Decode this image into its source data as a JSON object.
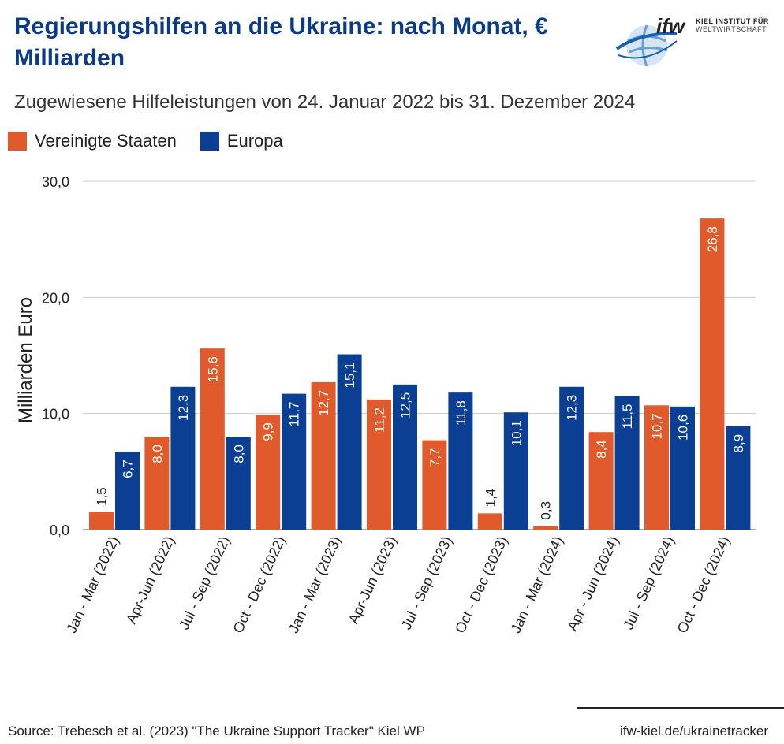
{
  "header": {
    "title": "Regierungshilfen an die Ukraine: nach Monat, € Milliarden",
    "subtitle": "Zugewiesene Hilfeleistungen von 24. Januar 2022 bis 31. Dezember 2024"
  },
  "logo": {
    "wordmark": "ifw",
    "line1": "KIEL INSTITUT FÜR",
    "line2": "WELTWIRTSCHAFT"
  },
  "colors": {
    "us": "#e05a2b",
    "europe": "#0b3f94",
    "title": "#0b3a86",
    "grid": "#cccccc"
  },
  "chart_data": {
    "type": "bar",
    "ylabel": "Milliarden Euro",
    "ylim": [
      0,
      30
    ],
    "yticks": [
      "0,0",
      "10,0",
      "20,0",
      "30,0"
    ],
    "legend_position": "top-left",
    "categories": [
      "Jan - Mar (2022)",
      "Apr-Jun (2022)",
      "Jul - Sep (2022)",
      "Oct - Dec (2022)",
      "Jan - Mar (2023)",
      "Apr-Jun (2023)",
      "Jul - Sep (2023)",
      "Oct - Dec (2023)",
      "Jan - Mar (2024)",
      "Apr - Jun (2024)",
      "Jul - Sep (2024)",
      "Oct - Dec (2024)"
    ],
    "series": [
      {
        "name": "Vereinigte Staaten",
        "values": [
          1.5,
          8.0,
          15.6,
          9.9,
          12.7,
          11.2,
          7.7,
          1.4,
          0.3,
          8.4,
          10.7,
          26.8
        ],
        "labels": [
          "1,5",
          "8,0",
          "15,6",
          "9,9",
          "12,7",
          "11,2",
          "7,7",
          "1,4",
          "0,3",
          "8,4",
          "10,7",
          "26,8"
        ]
      },
      {
        "name": "Europa",
        "values": [
          6.7,
          12.3,
          8.0,
          11.7,
          15.1,
          12.5,
          11.8,
          10.1,
          12.3,
          11.5,
          10.6,
          8.9
        ],
        "labels": [
          "6,7",
          "12,3",
          "8,0",
          "11,7",
          "15,1",
          "12,5",
          "11,8",
          "10,1",
          "12,3",
          "11,5",
          "10,6",
          "8,9"
        ]
      }
    ]
  },
  "footer": {
    "source": "Source: Trebesch et al. (2023) \"The Ukraine Support Tracker\" Kiel WP",
    "url": "ifw-kiel.de/ukrainetracker"
  }
}
